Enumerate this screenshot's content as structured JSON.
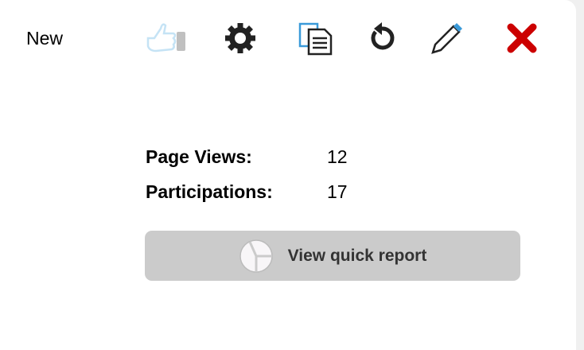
{
  "item": {
    "status": "New"
  },
  "toolbar": {
    "icons": [
      "thumbs-up-icon",
      "gear-icon",
      "copy-icon",
      "refresh-icon",
      "pencil-icon",
      "close-icon"
    ]
  },
  "stats": {
    "page_views_label": "Page Views:",
    "page_views_value": "12",
    "participations_label": "Participations:",
    "participations_value": "17"
  },
  "report_button": {
    "label": "View quick report"
  },
  "colors": {
    "accent_blue": "#3a9ad9",
    "close_red": "#cc0000",
    "button_bg": "#cbcbcb"
  }
}
